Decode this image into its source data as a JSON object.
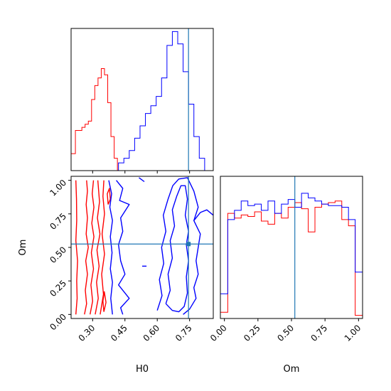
{
  "chart_data": {
    "type": "corner",
    "parameters": [
      "H0",
      "Om"
    ],
    "truth": {
      "H0": 0.745,
      "Om": 0.525,
      "color": "#1f77b4"
    },
    "series_colors": {
      "red": "#ff0000",
      "blue": "#0000ff"
    },
    "H0_axis": {
      "label": "H0",
      "range": [
        0.2,
        0.86
      ],
      "ticks": [
        "0.30",
        "0.45",
        "0.60",
        "0.75"
      ],
      "tick_values": [
        0.3,
        0.45,
        0.6,
        0.75
      ]
    },
    "Om_axis": {
      "label": "Om",
      "range": [
        -0.03,
        1.03
      ],
      "ticks": [
        "0.00",
        "0.25",
        "0.50",
        "0.75",
        "1.00"
      ],
      "tick_values": [
        0.0,
        0.25,
        0.5,
        0.75,
        1.0
      ]
    },
    "H0_hist": {
      "red_bins": [
        [
          0.2,
          0.22,
          0.11
        ],
        [
          0.22,
          0.235,
          0.26
        ],
        [
          0.235,
          0.25,
          0.26
        ],
        [
          0.25,
          0.265,
          0.28
        ],
        [
          0.265,
          0.28,
          0.3
        ],
        [
          0.28,
          0.295,
          0.32
        ],
        [
          0.295,
          0.31,
          0.46
        ],
        [
          0.31,
          0.325,
          0.55
        ],
        [
          0.325,
          0.34,
          0.6
        ],
        [
          0.34,
          0.355,
          0.66
        ],
        [
          0.355,
          0.37,
          0.62
        ],
        [
          0.37,
          0.385,
          0.44
        ],
        [
          0.385,
          0.4,
          0.22
        ],
        [
          0.4,
          0.415,
          0.08
        ],
        [
          0.415,
          0.43,
          0.0
        ]
      ],
      "blue_bins": [
        [
          0.2,
          0.42,
          0.0
        ],
        [
          0.42,
          0.445,
          0.05
        ],
        [
          0.445,
          0.47,
          0.08
        ],
        [
          0.47,
          0.495,
          0.13
        ],
        [
          0.495,
          0.52,
          0.21
        ],
        [
          0.52,
          0.545,
          0.29
        ],
        [
          0.545,
          0.57,
          0.37
        ],
        [
          0.57,
          0.595,
          0.42
        ],
        [
          0.595,
          0.62,
          0.48
        ],
        [
          0.62,
          0.645,
          0.6
        ],
        [
          0.645,
          0.67,
          0.81
        ],
        [
          0.67,
          0.695,
          0.9
        ],
        [
          0.695,
          0.72,
          0.82
        ],
        [
          0.72,
          0.745,
          0.64
        ],
        [
          0.745,
          0.77,
          0.43
        ],
        [
          0.77,
          0.795,
          0.22
        ],
        [
          0.795,
          0.82,
          0.08
        ],
        [
          0.82,
          0.86,
          0.0
        ]
      ]
    },
    "Om_hist": {
      "edges": [
        -0.03,
        0.025,
        0.075,
        0.125,
        0.175,
        0.225,
        0.275,
        0.325,
        0.375,
        0.425,
        0.475,
        0.525,
        0.575,
        0.625,
        0.675,
        0.725,
        0.775,
        0.825,
        0.875,
        0.925,
        0.975,
        1.03
      ],
      "red": [
        0.04,
        0.68,
        0.65,
        0.67,
        0.66,
        0.69,
        0.63,
        0.61,
        0.68,
        0.65,
        0.72,
        0.75,
        0.71,
        0.56,
        0.72,
        0.74,
        0.75,
        0.76,
        0.64,
        0.6,
        0.02
      ],
      "blue": [
        0.16,
        0.64,
        0.7,
        0.76,
        0.73,
        0.74,
        0.7,
        0.76,
        0.68,
        0.74,
        0.77,
        0.72,
        0.81,
        0.78,
        0.76,
        0.74,
        0.73,
        0.73,
        0.72,
        0.64,
        0.3
      ]
    },
    "contours": {
      "red": [
        [
          [
            0.222,
            0.0
          ],
          [
            0.228,
            0.12
          ],
          [
            0.226,
            0.25
          ],
          [
            0.23,
            0.4
          ],
          [
            0.222,
            0.55
          ],
          [
            0.226,
            0.7
          ],
          [
            0.225,
            0.86
          ],
          [
            0.222,
            1.0
          ]
        ],
        [
          [
            0.262,
            0.0
          ],
          [
            0.272,
            0.08
          ],
          [
            0.266,
            0.18
          ],
          [
            0.276,
            0.3
          ],
          [
            0.268,
            0.4
          ],
          [
            0.28,
            0.5
          ],
          [
            0.27,
            0.6
          ],
          [
            0.276,
            0.72
          ],
          [
            0.27,
            0.82
          ],
          [
            0.276,
            0.92
          ],
          [
            0.272,
            1.0
          ]
        ],
        [
          [
            0.288,
            0.0
          ],
          [
            0.3,
            0.1
          ],
          [
            0.292,
            0.22
          ],
          [
            0.304,
            0.34
          ],
          [
            0.294,
            0.46
          ],
          [
            0.306,
            0.58
          ],
          [
            0.296,
            0.68
          ],
          [
            0.306,
            0.8
          ],
          [
            0.298,
            0.9
          ],
          [
            0.304,
            1.0
          ]
        ],
        [
          [
            0.312,
            0.0
          ],
          [
            0.326,
            0.12
          ],
          [
            0.318,
            0.24
          ],
          [
            0.33,
            0.36
          ],
          [
            0.32,
            0.48
          ],
          [
            0.334,
            0.6
          ],
          [
            0.322,
            0.72
          ],
          [
            0.332,
            0.84
          ],
          [
            0.324,
            1.0
          ]
        ],
        [
          [
            0.335,
            0.0
          ],
          [
            0.35,
            0.15
          ],
          [
            0.342,
            0.3
          ],
          [
            0.355,
            0.45
          ],
          [
            0.344,
            0.6
          ],
          [
            0.355,
            0.75
          ],
          [
            0.348,
            0.88
          ],
          [
            0.352,
            1.0
          ]
        ],
        [
          [
            0.352,
            0.02
          ],
          [
            0.362,
            0.09
          ],
          [
            0.354,
            0.17
          ],
          [
            0.348,
            0.1
          ],
          [
            0.352,
            0.02
          ]
        ],
        [
          [
            0.372,
            0.82
          ],
          [
            0.382,
            0.86
          ],
          [
            0.378,
            0.94
          ],
          [
            0.368,
            0.9
          ],
          [
            0.372,
            0.82
          ]
        ]
      ],
      "blue": [
        [
          [
            0.375,
            1.0
          ],
          [
            0.388,
            0.9
          ],
          [
            0.38,
            0.8
          ],
          [
            0.392,
            0.7
          ],
          [
            0.382,
            0.58
          ],
          [
            0.39,
            0.46
          ],
          [
            0.382,
            0.34
          ],
          [
            0.392,
            0.24
          ],
          [
            0.384,
            0.12
          ],
          [
            0.392,
            0.0
          ]
        ],
        [
          [
            0.41,
            1.0
          ],
          [
            0.44,
            0.94
          ],
          [
            0.425,
            0.85
          ],
          [
            0.47,
            0.82
          ],
          [
            0.43,
            0.72
          ],
          [
            0.44,
            0.62
          ],
          [
            0.42,
            0.52
          ],
          [
            0.43,
            0.4
          ],
          [
            0.45,
            0.3
          ],
          [
            0.42,
            0.22
          ],
          [
            0.47,
            0.12
          ],
          [
            0.43,
            0.05
          ],
          [
            0.44,
            0.0
          ]
        ],
        [
          [
            0.64,
            0.08
          ],
          [
            0.66,
            0.18
          ],
          [
            0.65,
            0.3
          ],
          [
            0.67,
            0.42
          ],
          [
            0.66,
            0.55
          ],
          [
            0.68,
            0.66
          ],
          [
            0.67,
            0.78
          ],
          [
            0.69,
            0.88
          ],
          [
            0.71,
            0.96
          ],
          [
            0.73,
            0.96
          ],
          [
            0.74,
            0.86
          ],
          [
            0.73,
            0.74
          ],
          [
            0.745,
            0.62
          ],
          [
            0.735,
            0.52
          ],
          [
            0.745,
            0.4
          ],
          [
            0.735,
            0.28
          ],
          [
            0.74,
            0.16
          ],
          [
            0.725,
            0.06
          ],
          [
            0.7,
            0.02
          ],
          [
            0.67,
            0.03
          ],
          [
            0.64,
            0.08
          ]
        ],
        [
          [
            0.6,
            0.03
          ],
          [
            0.622,
            0.14
          ],
          [
            0.61,
            0.26
          ],
          [
            0.63,
            0.38
          ],
          [
            0.62,
            0.5
          ],
          [
            0.64,
            0.62
          ],
          [
            0.628,
            0.74
          ],
          [
            0.65,
            0.86
          ],
          [
            0.672,
            0.96
          ],
          [
            0.7,
            1.01
          ],
          [
            0.74,
            1.02
          ],
          [
            0.77,
            0.92
          ],
          [
            0.79,
            0.8
          ],
          [
            0.77,
            0.7
          ],
          [
            0.8,
            0.6
          ],
          [
            0.79,
            0.5
          ],
          [
            0.78,
            0.4
          ],
          [
            0.79,
            0.3
          ],
          [
            0.77,
            0.2
          ],
          [
            0.78,
            0.12
          ],
          [
            0.75,
            0.04
          ],
          [
            0.72,
            0.0
          ]
        ],
        [
          [
            0.77,
            0.7
          ],
          [
            0.8,
            0.76
          ],
          [
            0.83,
            0.78
          ],
          [
            0.86,
            0.74
          ]
        ],
        [
          [
            0.53,
            0.36
          ],
          [
            0.55,
            0.36
          ]
        ],
        [
          [
            0.515,
            1.02
          ],
          [
            0.54,
            0.99
          ]
        ]
      ]
    }
  }
}
